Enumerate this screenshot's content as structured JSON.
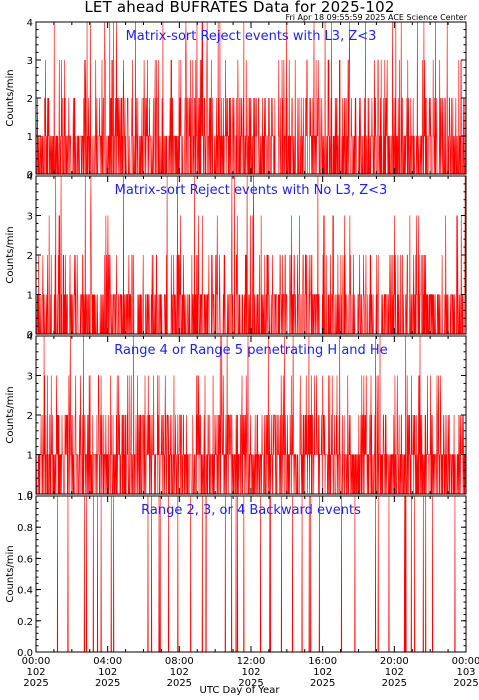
{
  "title": "LET ahead BUFRATES Data for 2025-102",
  "timestamp": "Fri Apr 18 09:55:59 2025 ACE Science Center",
  "xaxis_label": "UTC Day of Year",
  "colors": {
    "series": "#ff0000",
    "panel_title": "#1f1fff",
    "axes": "#000000"
  },
  "chart_data": [
    {
      "type": "line",
      "title": "Matrix-sort Reject events with L3, Z<3",
      "ylabel": "Counts/min",
      "ylim": [
        0,
        4
      ],
      "yticks": [
        "0",
        "1",
        "2",
        "3",
        "4"
      ],
      "level_fractions": [
        0.5,
        0.3,
        0.14,
        0.045,
        0.015
      ],
      "seed": 11
    },
    {
      "type": "line",
      "title": "Matrix-sort Reject events with No L3, Z<3",
      "ylabel": "Counts/min",
      "ylim": [
        0,
        4
      ],
      "yticks": [
        "0",
        "1",
        "2",
        "3",
        "4"
      ],
      "level_fractions": [
        0.62,
        0.26,
        0.08,
        0.03,
        0.01
      ],
      "seed": 23
    },
    {
      "type": "line",
      "title": "Range 4 or Range 5 penetrating H and He",
      "ylabel": "Counts/min",
      "ylim": [
        0,
        4
      ],
      "yticks": [
        "0",
        "1",
        "2",
        "3",
        "4"
      ],
      "level_fractions": [
        0.35,
        0.42,
        0.17,
        0.05,
        0.01
      ],
      "seed": 37
    },
    {
      "type": "line",
      "title": "Range 2, 3, or 4 Backward events",
      "ylabel": "Counts/min",
      "ylim": [
        0,
        1
      ],
      "yticks": [
        "0.0",
        "0.2",
        "0.4",
        "0.6",
        "0.8",
        "1.0"
      ],
      "level_fractions": [
        0.96,
        0.04
      ],
      "seed": 53
    }
  ],
  "x_ticks": [
    {
      "time": "00:00",
      "doy": "102",
      "year": "2025"
    },
    {
      "time": "04:00",
      "doy": "102",
      "year": "2025"
    },
    {
      "time": "08:00",
      "doy": "102",
      "year": "2025"
    },
    {
      "time": "12:00",
      "doy": "102",
      "year": "2025"
    },
    {
      "time": "16:00",
      "doy": "102",
      "year": "2025"
    },
    {
      "time": "20:00",
      "doy": "102",
      "year": "2025"
    },
    {
      "time": "00:00",
      "doy": "103",
      "year": "2025"
    }
  ],
  "x_range_minutes": [
    0,
    1440
  ]
}
